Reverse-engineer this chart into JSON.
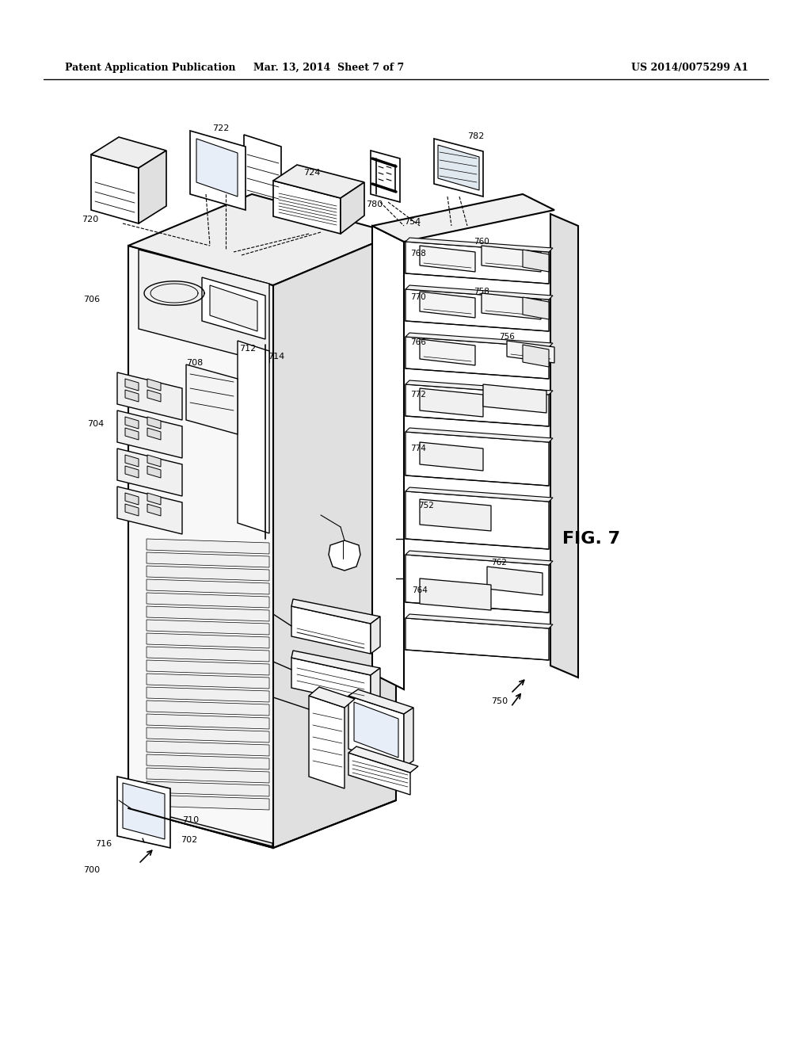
{
  "background_color": "#ffffff",
  "header_left": "Patent Application Publication",
  "header_mid": "Mar. 13, 2014  Sheet 7 of 7",
  "header_right": "US 2014/0075299 A1",
  "fig_label": "FIG. 7"
}
